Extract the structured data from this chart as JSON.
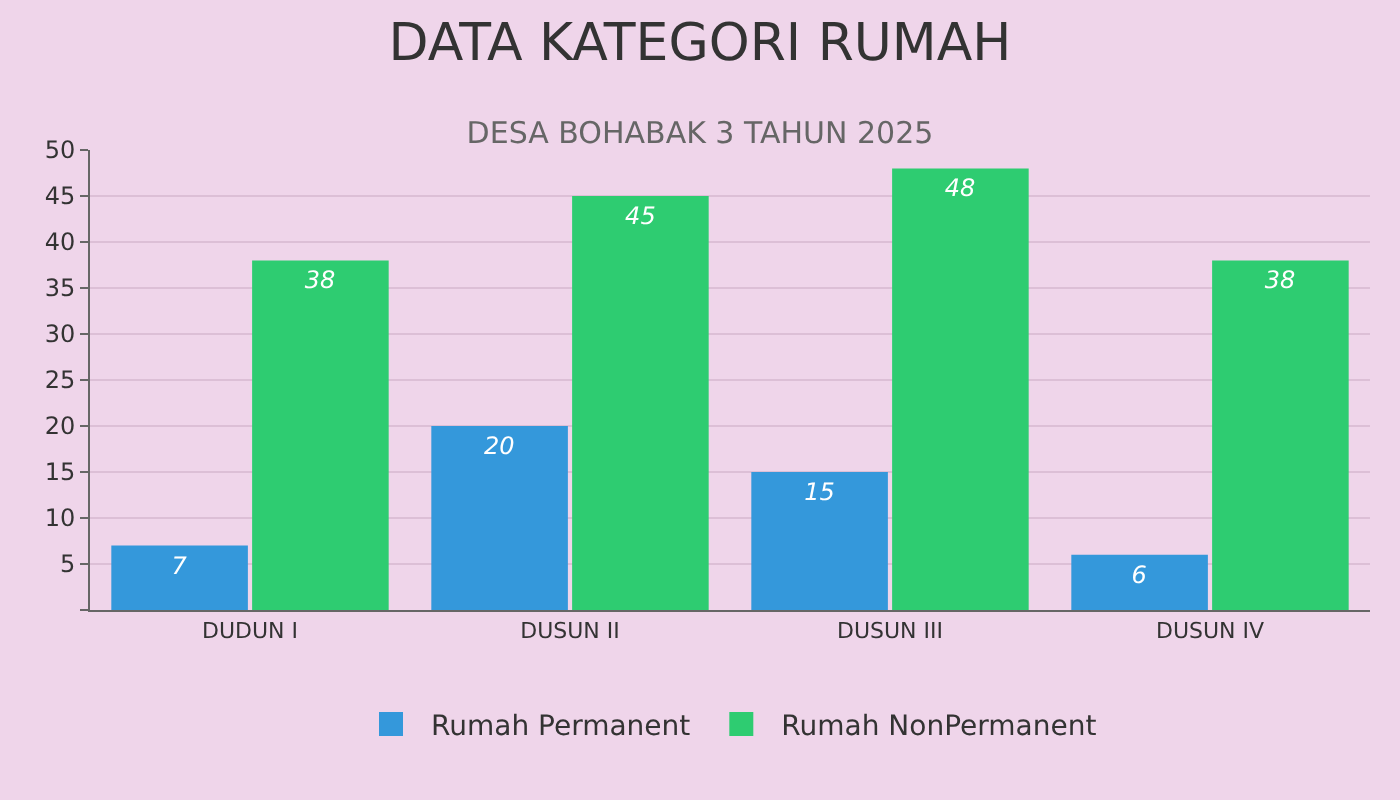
{
  "chart_data": {
    "type": "bar",
    "title": "DATA KATEGORI RUMAH",
    "subtitle": "DESA BOHABAK 3 TAHUN 2025",
    "categories": [
      "DUDUN I",
      "DUSUN II",
      "DUSUN III",
      "DUSUN IV"
    ],
    "series": [
      {
        "name": "Rumah Permanent",
        "color": "#3498db",
        "values": [
          7,
          20,
          15,
          6
        ]
      },
      {
        "name": "Rumah NonPermanent",
        "color": "#2ecc71",
        "values": [
          38,
          45,
          48,
          38
        ]
      }
    ],
    "ylim": [
      0,
      50
    ],
    "yticks": [
      {
        "value": 0,
        "label": null
      },
      5,
      10,
      15,
      20,
      25,
      30,
      35,
      40,
      45,
      50
    ],
    "grid": "y",
    "legend": "bottom",
    "data_labels": true
  }
}
